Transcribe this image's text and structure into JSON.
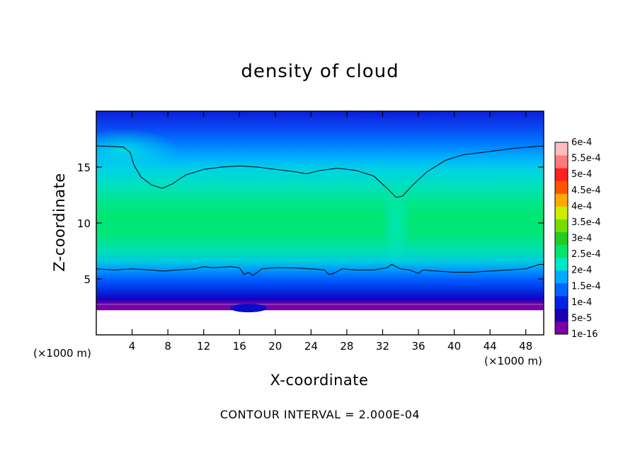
{
  "chart_data": {
    "type": "heatmap",
    "title": "density of cloud",
    "xlabel": "X-coordinate",
    "ylabel": "Z-coordinate",
    "x_unit": "(×1000 m)",
    "footnote": "CONTOUR INTERVAL = 2.000E-04",
    "xlim": [
      0,
      50
    ],
    "ylim": [
      0,
      20
    ],
    "x_ticks": [
      "4",
      "8",
      "12",
      "16",
      "20",
      "24",
      "28",
      "32",
      "36",
      "40",
      "44",
      "48"
    ],
    "x_tick_values": [
      4,
      8,
      12,
      16,
      20,
      24,
      28,
      32,
      36,
      40,
      44,
      48
    ],
    "y_ticks": [
      "5",
      "10",
      "15"
    ],
    "y_tick_values": [
      5,
      10,
      15
    ],
    "colorbar": {
      "labels": [
        "1e-16",
        "5e-5",
        "1e-4",
        "1.5e-4",
        "2e-4",
        "2.5e-4",
        "3e-4",
        "3.5e-4",
        "4e-4",
        "4.5e-4",
        "5e-4",
        "5.5e-4",
        "6e-4"
      ],
      "colors": [
        "#7a00a8",
        "#1c00b0",
        "#0022e6",
        "#0066ff",
        "#00aaff",
        "#00e6c8",
        "#00e66a",
        "#22cc22",
        "#77dd00",
        "#ccee00",
        "#ffaa00",
        "#ff5500",
        "#ff2020",
        "#ff7a7a",
        "#ffbcbc"
      ]
    },
    "contour_upper": [
      [
        0,
        16.9
      ],
      [
        3,
        16.8
      ],
      [
        3.8,
        16.3
      ],
      [
        4.2,
        15.2
      ],
      [
        5,
        14.1
      ],
      [
        6.2,
        13.4
      ],
      [
        7.4,
        13.1
      ],
      [
        8.5,
        13.5
      ],
      [
        10,
        14.3
      ],
      [
        12,
        14.8
      ],
      [
        14,
        15.0
      ],
      [
        16,
        15.1
      ],
      [
        18,
        15.0
      ],
      [
        20,
        14.8
      ],
      [
        22,
        14.6
      ],
      [
        23.5,
        14.4
      ],
      [
        25,
        14.7
      ],
      [
        27,
        14.9
      ],
      [
        29,
        14.7
      ],
      [
        31,
        14.2
      ],
      [
        32.5,
        13.1
      ],
      [
        33.5,
        12.3
      ],
      [
        34.2,
        12.4
      ],
      [
        35.5,
        13.5
      ],
      [
        37,
        14.6
      ],
      [
        39,
        15.6
      ],
      [
        41,
        16.1
      ],
      [
        43,
        16.3
      ],
      [
        45,
        16.5
      ],
      [
        47,
        16.7
      ],
      [
        50,
        16.9
      ]
    ],
    "contour_lower": [
      [
        0,
        5.9
      ],
      [
        2,
        5.8
      ],
      [
        4,
        5.9
      ],
      [
        6,
        5.8
      ],
      [
        7.5,
        5.7
      ],
      [
        9,
        5.8
      ],
      [
        11,
        5.9
      ],
      [
        12,
        6.1
      ],
      [
        13,
        6.0
      ],
      [
        15,
        6.1
      ],
      [
        16,
        6.0
      ],
      [
        16.5,
        5.4
      ],
      [
        17,
        5.6
      ],
      [
        17.5,
        5.3
      ],
      [
        18.5,
        5.9
      ],
      [
        20,
        6.0
      ],
      [
        22,
        6.0
      ],
      [
        24,
        5.9
      ],
      [
        25.5,
        5.8
      ],
      [
        26,
        5.4
      ],
      [
        26.5,
        5.5
      ],
      [
        27.5,
        5.9
      ],
      [
        29,
        5.8
      ],
      [
        31,
        5.8
      ],
      [
        32.5,
        6.0
      ],
      [
        33,
        6.3
      ],
      [
        34,
        5.9
      ],
      [
        35,
        5.8
      ],
      [
        36,
        5.5
      ],
      [
        36.5,
        5.8
      ],
      [
        38,
        5.7
      ],
      [
        40,
        5.6
      ],
      [
        42,
        5.6
      ],
      [
        44,
        5.7
      ],
      [
        46,
        5.8
      ],
      [
        48,
        5.9
      ],
      [
        49.5,
        6.3
      ],
      [
        50,
        6.3
      ]
    ]
  }
}
